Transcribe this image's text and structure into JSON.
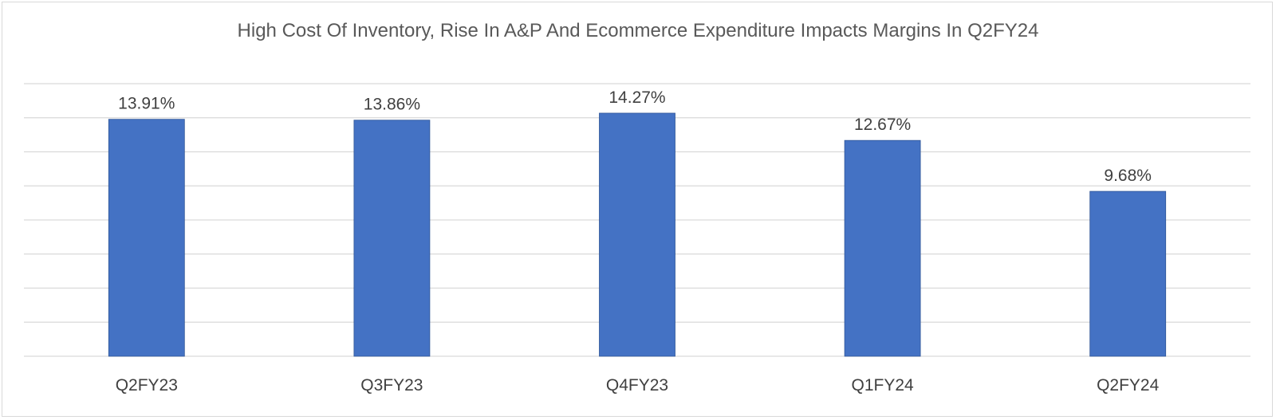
{
  "chart_data": {
    "type": "bar",
    "title": "High Cost Of Inventory, Rise In A&P And Ecommerce Expenditure Impacts Margins In Q2FY24",
    "categories": [
      "Q2FY23",
      "Q3FY23",
      "Q4FY23",
      "Q1FY24",
      "Q2FY24"
    ],
    "values": [
      13.91,
      13.86,
      14.27,
      12.67,
      9.68
    ],
    "data_labels": [
      "13.91%",
      "13.86%",
      "14.27%",
      "12.67%",
      "9.68%"
    ],
    "xlabel": "",
    "ylabel": "",
    "ylim": [
      0,
      16
    ],
    "y_gridline_step": 2,
    "y_axis_labels_visible": false,
    "grid": true,
    "legend": "none",
    "bar_color": "#4472C4",
    "bar_edge_color": "#2F5597",
    "gridline_color": "#D9D9D9"
  }
}
